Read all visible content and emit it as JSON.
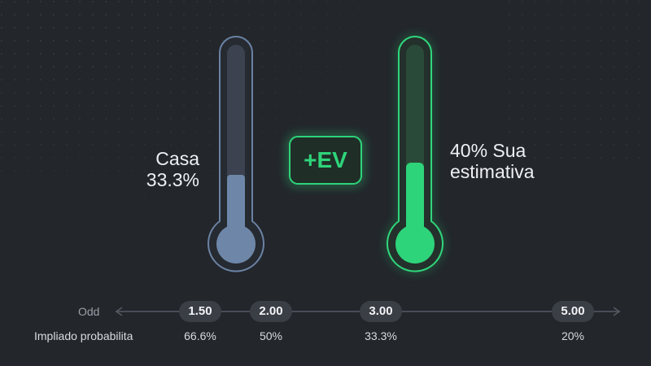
{
  "thermometers": [
    {
      "label": "Casa",
      "value": "33.3%"
    },
    {
      "label": "40% Sua estimativa"
    }
  ],
  "badge": "+EV",
  "scale": {
    "row_labels": [
      "Odd",
      "Impliado probabilita"
    ],
    "odds": [
      "1.50",
      "2.00",
      "3.00",
      "5.00"
    ],
    "probabilities": [
      "66.6%",
      "50%",
      "33.3%",
      "20%"
    ]
  }
}
